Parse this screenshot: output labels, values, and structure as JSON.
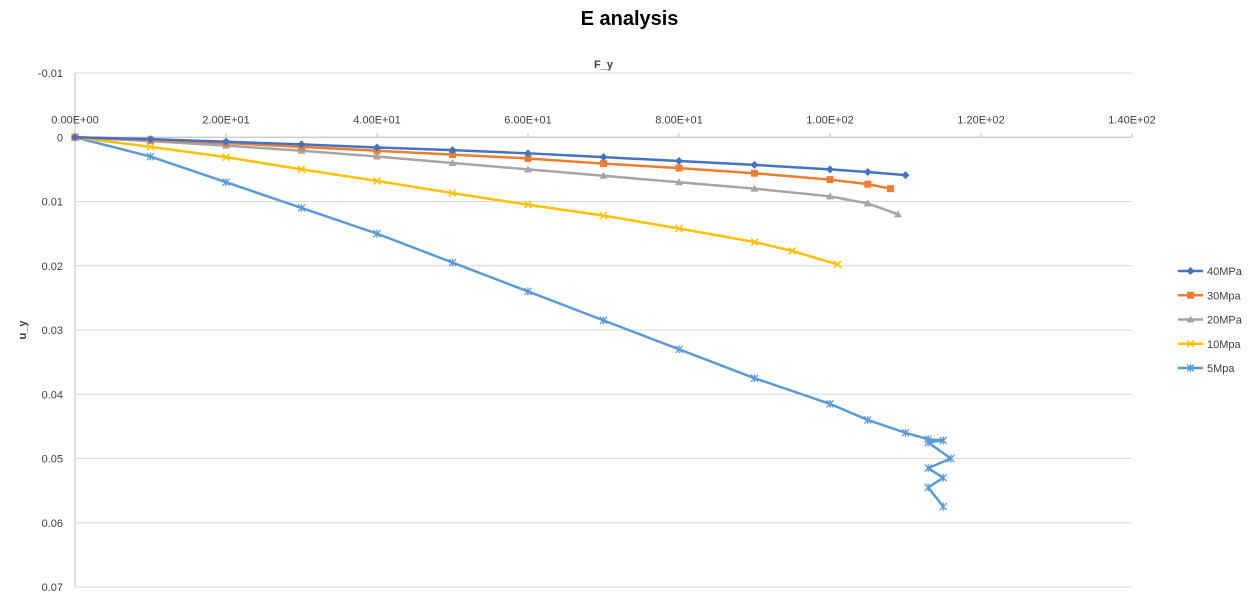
{
  "chart_data": {
    "type": "scatter",
    "title": "E analysis",
    "xlabel": "F_y",
    "ylabel": "u_y",
    "xlim": [
      0,
      140
    ],
    "ylim": [
      -0.01,
      0.07
    ],
    "y_reversed": true,
    "x_axis_position": "top (at y=0)",
    "x_ticks": [
      0,
      20,
      40,
      60,
      80,
      100,
      120,
      140
    ],
    "x_tick_labels": [
      "0.00E+00",
      "2.00E+01",
      "4.00E+01",
      "6.00E+01",
      "8.00E+01",
      "1.00E+02",
      "1.20E+02",
      "1.40E+02"
    ],
    "y_ticks": [
      -0.01,
      0,
      0.01,
      0.02,
      0.03,
      0.04,
      0.05,
      0.06,
      0.07
    ],
    "y_tick_labels": [
      "-0.01",
      "0",
      "0.01",
      "0.02",
      "0.03",
      "0.04",
      "0.05",
      "0.06",
      "0.07"
    ],
    "grid": "horizontal",
    "legend_position": "right",
    "series": [
      {
        "name": "40MPa",
        "color": "#4472C4",
        "marker": "diamond",
        "x": [
          0,
          10,
          20,
          30,
          40,
          50,
          60,
          70,
          80,
          90,
          100,
          105,
          110
        ],
        "y": [
          0,
          0.0003,
          0.0007,
          0.0011,
          0.0016,
          0.002,
          0.0025,
          0.0031,
          0.0037,
          0.0043,
          0.005,
          0.0054,
          0.0059
        ]
      },
      {
        "name": "30Mpa",
        "color": "#ED7D31",
        "marker": "square",
        "x": [
          0,
          10,
          20,
          30,
          40,
          50,
          60,
          70,
          80,
          90,
          100,
          105,
          108
        ],
        "y": [
          0,
          0.0004,
          0.0009,
          0.0015,
          0.0021,
          0.0027,
          0.0033,
          0.0041,
          0.0048,
          0.0056,
          0.0066,
          0.0073,
          0.008
        ]
      },
      {
        "name": "20MPa",
        "color": "#A5A5A5",
        "marker": "triangle",
        "x": [
          0,
          10,
          20,
          30,
          40,
          50,
          60,
          70,
          80,
          90,
          100,
          105,
          109
        ],
        "y": [
          0,
          0.0006,
          0.0013,
          0.0021,
          0.003,
          0.004,
          0.005,
          0.006,
          0.007,
          0.008,
          0.0092,
          0.0103,
          0.012
        ]
      },
      {
        "name": "10Mpa",
        "color": "#FFC000",
        "marker": "x",
        "x": [
          0,
          10,
          20,
          30,
          40,
          50,
          60,
          70,
          80,
          90,
          95,
          101
        ],
        "y": [
          0,
          0.0015,
          0.0031,
          0.005,
          0.0068,
          0.0087,
          0.0105,
          0.0122,
          0.0142,
          0.0163,
          0.0177,
          0.0198
        ]
      },
      {
        "name": "5Mpa",
        "color": "#5B9BD5",
        "marker": "star",
        "x": [
          0,
          10,
          20,
          30,
          40,
          50,
          60,
          70,
          80,
          90,
          100,
          105,
          110,
          113,
          115,
          113,
          116,
          113,
          115,
          113,
          115
        ],
        "y": [
          0,
          0.003,
          0.007,
          0.011,
          0.015,
          0.0195,
          0.024,
          0.0285,
          0.033,
          0.0375,
          0.0415,
          0.044,
          0.046,
          0.047,
          0.0472,
          0.0475,
          0.05,
          0.0515,
          0.053,
          0.0545,
          0.0575
        ]
      }
    ]
  }
}
